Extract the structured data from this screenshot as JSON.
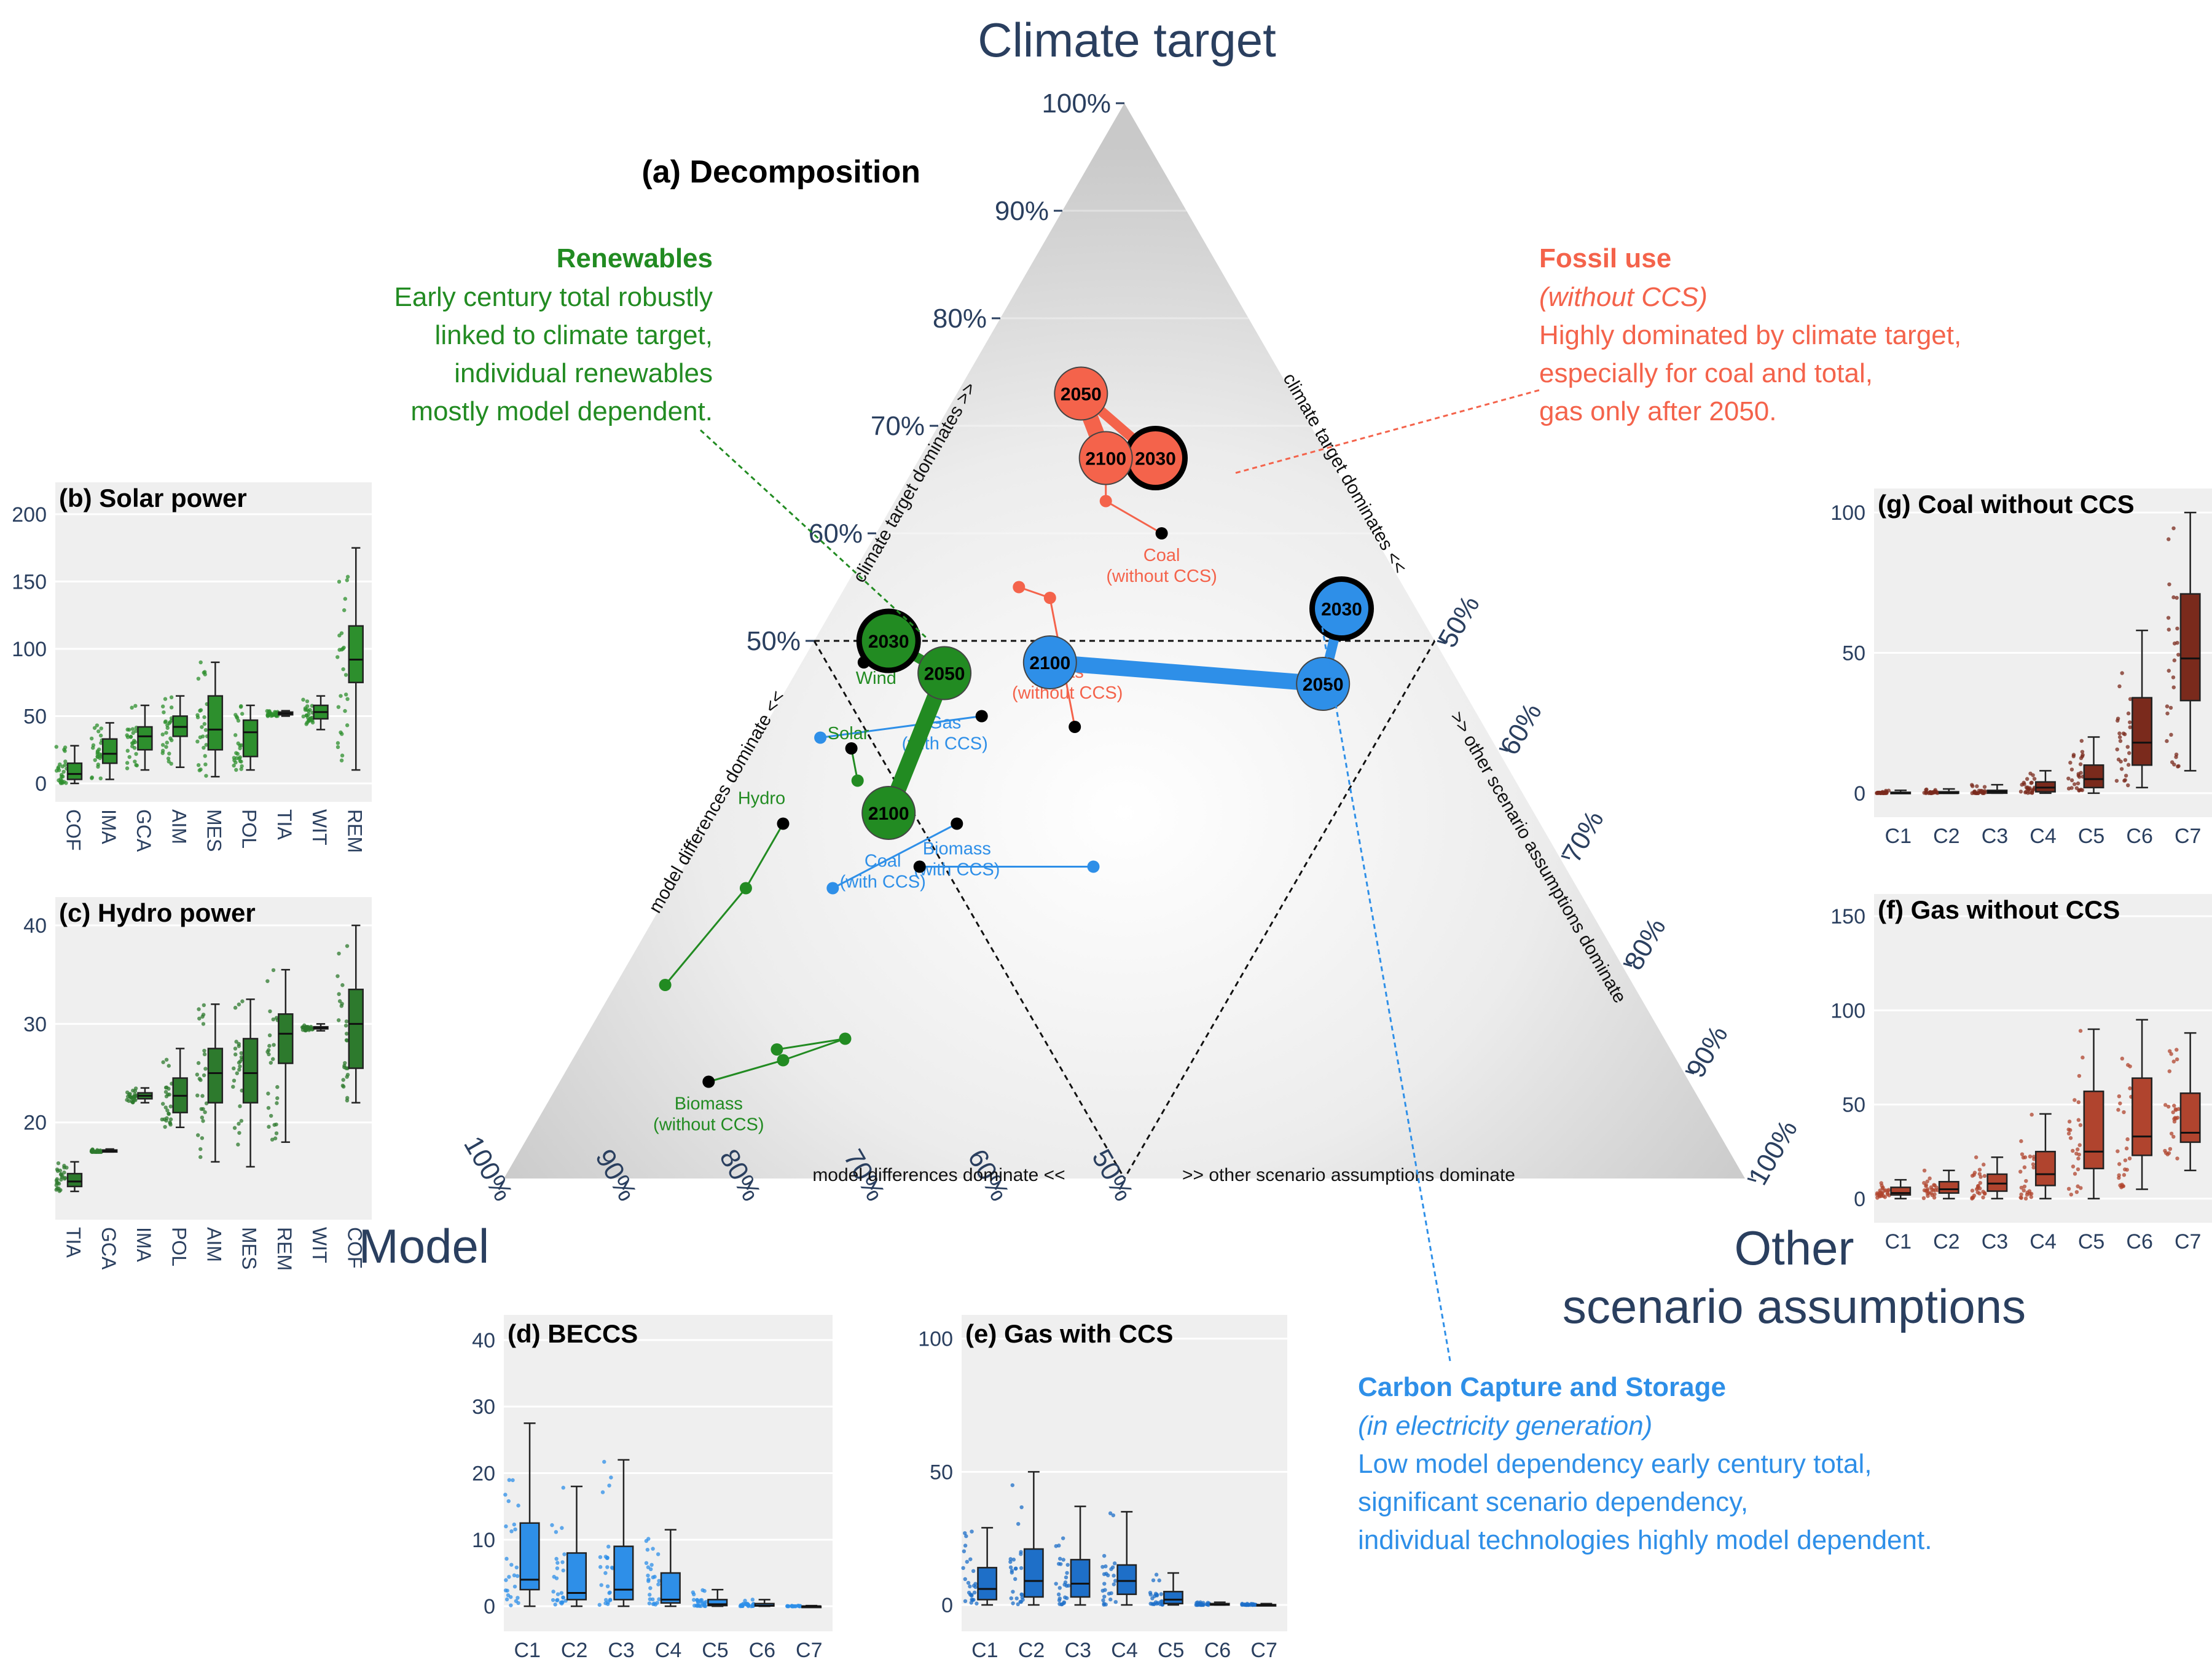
{
  "figure": {
    "corner_top": "Climate target",
    "corner_left": "Model",
    "corner_right_line1": "Other",
    "corner_right_line2": "scenario assumptions",
    "panel_a_title": "(a) Decomposition",
    "colors": {
      "renewables": "#228b22",
      "fossil": "#f4634b",
      "ccs": "#2e8fe8",
      "gas_ccs_box": "#1e6fc8",
      "axis_text": "#2a3f5f",
      "panel_bg": "#efefef"
    }
  },
  "ternary": {
    "top_ticks": [
      "100%",
      "90%",
      "80%",
      "70%",
      "60%",
      "50%"
    ],
    "left_ticks": [
      "100%",
      "90%",
      "80%",
      "70%",
      "60%",
      "50%"
    ],
    "right_ticks": [
      "50%",
      "60%",
      "70%",
      "80%",
      "90%",
      "100%"
    ],
    "region_labels": {
      "left_top": "climate target dominates >>",
      "right_top": "climate target dominates <<",
      "left_mid": "model differences dominate <<",
      "right_mid": ">> other scenario assumptions dominate",
      "bottom_left": "model differences dominate <<",
      "bottom_right": ">> other scenario assumptions dominate"
    }
  },
  "annotations": {
    "renewables": {
      "title": "Renewables",
      "lines": [
        "Early century total robustly",
        "linked to climate target,",
        "individual renewables",
        "mostly model dependent."
      ]
    },
    "fossil": {
      "title": "Fossil use",
      "subtitle": "(without CCS)",
      "lines": [
        "Highly dominated by climate target,",
        "especially for coal and total,",
        "gas only after 2050."
      ]
    },
    "ccs": {
      "title": "Carbon Capture and Storage",
      "subtitle": "(in electricity generation)",
      "lines": [
        "Low model dependency early century total,",
        "significant scenario dependency,",
        "individual technologies highly model dependent."
      ]
    }
  },
  "chart_data": [
    {
      "id": "a",
      "type": "scatter",
      "title": "(a) Decomposition",
      "note": "ternary shares: climate target / model / other scenario assumptions (%)",
      "totals": [
        {
          "group": "Renewables",
          "points": [
            {
              "label": "2030",
              "climate": 50,
              "model": 44,
              "other": 6
            },
            {
              "label": "2050",
              "climate": 47,
              "model": 41,
              "other": 12
            },
            {
              "label": "2100",
              "climate": 34,
              "model": 52,
              "other": 14
            }
          ]
        },
        {
          "group": "Fossil use (without CCS)",
          "points": [
            {
              "label": "2030",
              "climate": 67,
              "model": 14,
              "other": 19
            },
            {
              "label": "2050",
              "climate": 73,
              "model": 17,
              "other": 10
            },
            {
              "label": "2100",
              "climate": 67,
              "model": 18,
              "other": 15
            }
          ]
        },
        {
          "group": "Carbon Capture and Storage",
          "points": [
            {
              "label": "2030",
              "climate": 53,
              "model": 6,
              "other": 41
            },
            {
              "label": "2050",
              "climate": 46,
              "model": 11,
              "other": 43
            },
            {
              "label": "2100",
              "climate": 48,
              "model": 32,
              "other": 20
            }
          ]
        }
      ],
      "technologies": [
        {
          "label": "Coal",
          "sublabel": "(without CCS)",
          "group": "fossil",
          "climate": 60,
          "model": 17,
          "other": 23,
          "path": [
            [
              67,
              18,
              15
            ],
            [
              63,
              20,
              17
            ],
            [
              60,
              17,
              23
            ]
          ]
        },
        {
          "label": "Gas",
          "sublabel": "(without CCS)",
          "group": "fossil",
          "climate": 42,
          "model": 33,
          "other": 25,
          "path": [
            [
              55,
              31,
              14
            ],
            [
              54,
              29,
              17
            ],
            [
              42,
              33,
              25
            ]
          ]
        },
        {
          "label": "Gas",
          "sublabel": "(with CCS)",
          "group": "ccs",
          "climate": 43,
          "model": 40,
          "other": 17,
          "path": [
            [
              41,
              54,
              5
            ],
            [
              43,
              40,
              17
            ]
          ]
        },
        {
          "label": "Biomass",
          "sublabel": "(with CCS)",
          "group": "ccs",
          "climate": 33,
          "model": 47,
          "other": 20,
          "path": [
            [
              27,
              60,
              13
            ],
            [
              33,
              47,
              20
            ]
          ]
        },
        {
          "label": "Coal",
          "sublabel": "(with CCS)",
          "group": "ccs",
          "climate": 29,
          "model": 52,
          "other": 19,
          "path": [
            [
              29,
              38,
              33
            ],
            [
              29,
              52,
              19
            ]
          ]
        },
        {
          "label": "Wind",
          "sublabel": "",
          "group": "renewables",
          "climate": 48,
          "model": 47,
          "other": 5,
          "path": [
            [
              50,
              44,
              6
            ],
            [
              48,
              47,
              5
            ]
          ]
        },
        {
          "label": "Solar",
          "sublabel": "",
          "group": "renewables",
          "climate": 40,
          "model": 52,
          "other": 8,
          "path": [
            [
              37,
              53,
              10
            ],
            [
              40,
              52,
              8
            ]
          ]
        },
        {
          "label": "Hydro",
          "sublabel": "",
          "group": "renewables",
          "climate": 33,
          "model": 61,
          "other": 6,
          "path": [
            [
              18,
              78,
              4
            ],
            [
              27,
              67,
              6
            ],
            [
              33,
              61,
              6
            ]
          ]
        },
        {
          "label": "Biomass",
          "sublabel": "(without CCS)",
          "group": "renewables",
          "climate": 9,
          "model": 79,
          "other": 12,
          "path": [
            [
              12,
              72,
              16
            ],
            [
              13,
              66,
              21
            ],
            [
              11,
              72,
              17
            ],
            [
              9,
              79,
              12
            ]
          ]
        }
      ]
    },
    {
      "id": "b",
      "type": "box",
      "title": "(b) Solar power",
      "color": "#2d8f2d",
      "categories": [
        "COF",
        "IMA",
        "GCA",
        "AIM",
        "MES",
        "POL",
        "TIA",
        "WIT",
        "REM"
      ],
      "ylim": [
        0,
        210
      ],
      "yticks": [
        0,
        50,
        100,
        150,
        200
      ],
      "stats": [
        [
          0,
          3,
          7,
          15,
          28
        ],
        [
          3,
          15,
          22,
          33,
          45
        ],
        [
          10,
          25,
          35,
          42,
          58
        ],
        [
          12,
          35,
          42,
          50,
          65
        ],
        [
          5,
          25,
          40,
          65,
          90
        ],
        [
          10,
          20,
          38,
          47,
          58
        ],
        [
          50,
          51,
          52,
          53,
          54
        ],
        [
          40,
          48,
          53,
          58,
          65
        ],
        [
          10,
          75,
          92,
          117,
          175
        ]
      ]
    },
    {
      "id": "c",
      "type": "box",
      "title": "(c) Hydro power",
      "color": "#2d7a2d",
      "categories": [
        "TIA",
        "GCA",
        "IMA",
        "POL",
        "AIM",
        "MES",
        "REM",
        "WIT",
        "COF"
      ],
      "ylim": [
        12,
        41
      ],
      "yticks": [
        20,
        30,
        40
      ],
      "stats": [
        [
          13,
          13.5,
          14,
          14.8,
          16
        ],
        [
          17,
          17,
          17.1,
          17.2,
          17.3
        ],
        [
          22,
          22.4,
          22.7,
          23,
          23.5
        ],
        [
          19.5,
          21,
          22.7,
          24.5,
          27.5
        ],
        [
          16,
          22,
          25,
          27.5,
          32
        ],
        [
          15.5,
          22,
          25,
          28.5,
          32.5
        ],
        [
          18,
          26,
          29,
          31,
          35.5
        ],
        [
          29.3,
          29.5,
          29.6,
          29.7,
          30
        ],
        [
          22,
          25.5,
          30,
          33.5,
          40
        ]
      ]
    },
    {
      "id": "d",
      "type": "box",
      "title": "(d) BECCS",
      "color": "#2e8fe8",
      "categories": [
        "C1",
        "C2",
        "C3",
        "C4",
        "C5",
        "C6",
        "C7"
      ],
      "ylim": [
        -1,
        41
      ],
      "yticks": [
        0,
        10,
        20,
        30,
        40
      ],
      "stats": [
        [
          0,
          2.5,
          4,
          12.5,
          27.5
        ],
        [
          0,
          1,
          2,
          8,
          18
        ],
        [
          0,
          1,
          2.5,
          9,
          22
        ],
        [
          0,
          0.5,
          1,
          5,
          11.5
        ],
        [
          0,
          0.1,
          0.3,
          1,
          2.5
        ],
        [
          0,
          0.05,
          0.1,
          0.4,
          1
        ],
        [
          0,
          0,
          0,
          0,
          0.1
        ]
      ]
    },
    {
      "id": "e",
      "type": "box",
      "title": "(e) Gas with CCS",
      "color": "#1e6fc8",
      "categories": [
        "C1",
        "C2",
        "C3",
        "C4",
        "C5",
        "C6",
        "C7"
      ],
      "ylim": [
        -3,
        102
      ],
      "yticks": [
        0,
        50,
        100
      ],
      "stats": [
        [
          0,
          2,
          6,
          14,
          29
        ],
        [
          0,
          3,
          9,
          21,
          50
        ],
        [
          0,
          3,
          8,
          17,
          37
        ],
        [
          0,
          4,
          9,
          15,
          35
        ],
        [
          0,
          0.5,
          2,
          5,
          12
        ],
        [
          0,
          0,
          0.1,
          0.5,
          1
        ],
        [
          0,
          0,
          0,
          0.1,
          0.5
        ]
      ]
    },
    {
      "id": "f",
      "type": "box",
      "title": "(f) Gas without CCS",
      "color": "#b0442e",
      "categories": [
        "C1",
        "C2",
        "C3",
        "C4",
        "C5",
        "C6",
        "C7"
      ],
      "ylim": [
        -3,
        152
      ],
      "yticks": [
        0,
        50,
        100,
        150
      ],
      "stats": [
        [
          0,
          2,
          3,
          6,
          10
        ],
        [
          0,
          3,
          5,
          9,
          15
        ],
        [
          0,
          4,
          8,
          13,
          22
        ],
        [
          0,
          7,
          13,
          25,
          45
        ],
        [
          0,
          16,
          25,
          57,
          90
        ],
        [
          5,
          23,
          33,
          64,
          95
        ],
        [
          15,
          30,
          35,
          56,
          88
        ]
      ]
    },
    {
      "id": "g",
      "type": "box",
      "title": "(g) Coal without CCS",
      "color": "#7a2a1c",
      "categories": [
        "C1",
        "C2",
        "C3",
        "C4",
        "C5",
        "C6",
        "C7"
      ],
      "ylim": [
        -2,
        102
      ],
      "yticks": [
        0,
        50,
        100
      ],
      "stats": [
        [
          0,
          0,
          0,
          0.3,
          1
        ],
        [
          0,
          0,
          0,
          0.5,
          1.5
        ],
        [
          0,
          0,
          0.5,
          1,
          3
        ],
        [
          0,
          0.5,
          2,
          4,
          8
        ],
        [
          0,
          2,
          5,
          10,
          20
        ],
        [
          2,
          10,
          18,
          34,
          58
        ],
        [
          8,
          33,
          48,
          71,
          100
        ]
      ]
    }
  ]
}
